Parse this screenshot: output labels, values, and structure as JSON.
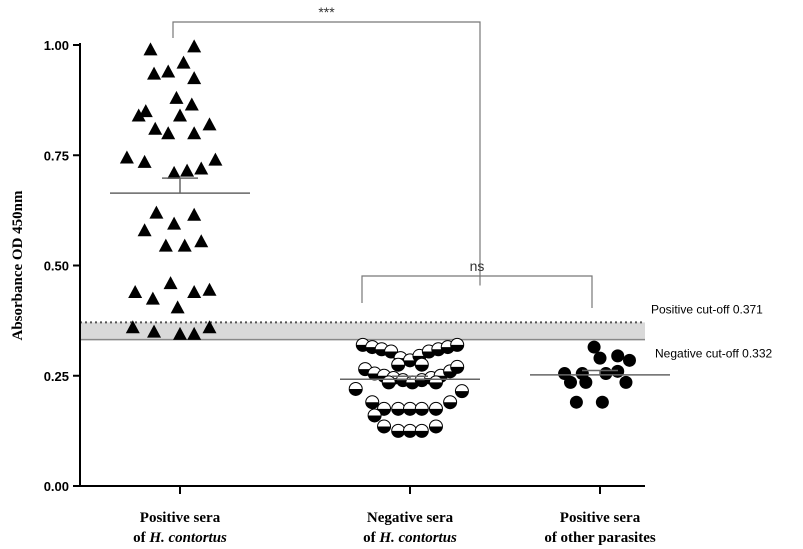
{
  "chart_data": {
    "type": "scatter",
    "ylabel": "Absorbance OD 450nm",
    "ylim": [
      0,
      1.0
    ],
    "yticks": [
      "0.00",
      "0.25",
      "0.50",
      "0.75",
      "1.00"
    ],
    "categories": [
      {
        "line1": "Positive sera",
        "prefix": "of ",
        "italic": "H. contortus",
        "suffix": ""
      },
      {
        "line1": "Negative sera",
        "prefix": "of ",
        "italic": "H. contortus",
        "suffix": ""
      },
      {
        "line1": "Positive sera",
        "prefix": "of other parasites",
        "italic": "",
        "suffix": ""
      }
    ],
    "cutoffs": {
      "positive": {
        "label": "Positive cut-off 0.371",
        "value": 0.371
      },
      "negative": {
        "label": "Negative cut-off 0.332",
        "value": 0.332
      }
    },
    "comparisons": [
      {
        "from": 0,
        "to": 1,
        "label": "***"
      },
      {
        "from": 1,
        "to": 2,
        "label": "ns"
      }
    ],
    "groups": [
      {
        "marker": "triangle",
        "mean": 0.664,
        "sem_upper": 0.698,
        "points": [
          {
            "x": -0.25,
            "y": 0.99
          },
          {
            "x": 0.12,
            "y": 0.997
          },
          {
            "x": -0.1,
            "y": 0.94
          },
          {
            "x": 0.03,
            "y": 0.96
          },
          {
            "x": -0.22,
            "y": 0.935
          },
          {
            "x": 0.12,
            "y": 0.925
          },
          {
            "x": -0.03,
            "y": 0.88
          },
          {
            "x": 0.1,
            "y": 0.865
          },
          {
            "x": -0.35,
            "y": 0.84
          },
          {
            "x": -0.29,
            "y": 0.85
          },
          {
            "x": 0.0,
            "y": 0.84
          },
          {
            "x": -0.21,
            "y": 0.81
          },
          {
            "x": -0.1,
            "y": 0.8
          },
          {
            "x": 0.12,
            "y": 0.8
          },
          {
            "x": 0.25,
            "y": 0.82
          },
          {
            "x": -0.45,
            "y": 0.745
          },
          {
            "x": -0.3,
            "y": 0.735
          },
          {
            "x": -0.05,
            "y": 0.71
          },
          {
            "x": 0.06,
            "y": 0.715
          },
          {
            "x": 0.18,
            "y": 0.72
          },
          {
            "x": 0.3,
            "y": 0.74
          },
          {
            "x": -0.2,
            "y": 0.62
          },
          {
            "x": 0.12,
            "y": 0.615
          },
          {
            "x": -0.3,
            "y": 0.58
          },
          {
            "x": -0.05,
            "y": 0.595
          },
          {
            "x": -0.12,
            "y": 0.545
          },
          {
            "x": 0.04,
            "y": 0.545
          },
          {
            "x": 0.18,
            "y": 0.555
          },
          {
            "x": -0.38,
            "y": 0.44
          },
          {
            "x": -0.23,
            "y": 0.425
          },
          {
            "x": -0.08,
            "y": 0.46
          },
          {
            "x": 0.12,
            "y": 0.44
          },
          {
            "x": 0.25,
            "y": 0.445
          },
          {
            "x": -0.02,
            "y": 0.405
          },
          {
            "x": -0.4,
            "y": 0.36
          },
          {
            "x": -0.22,
            "y": 0.35
          },
          {
            "x": 0.0,
            "y": 0.345
          },
          {
            "x": 0.12,
            "y": 0.345
          },
          {
            "x": 0.25,
            "y": 0.36
          }
        ]
      },
      {
        "marker": "half-circle",
        "mean": 0.242,
        "sem_upper": 0.249,
        "points": [
          {
            "x": -0.4,
            "y": 0.32
          },
          {
            "x": -0.32,
            "y": 0.315
          },
          {
            "x": -0.24,
            "y": 0.31
          },
          {
            "x": -0.16,
            "y": 0.305
          },
          {
            "x": -0.08,
            "y": 0.29
          },
          {
            "x": 0.0,
            "y": 0.285
          },
          {
            "x": 0.08,
            "y": 0.295
          },
          {
            "x": 0.16,
            "y": 0.305
          },
          {
            "x": 0.24,
            "y": 0.31
          },
          {
            "x": 0.32,
            "y": 0.315
          },
          {
            "x": 0.4,
            "y": 0.32
          },
          {
            "x": -0.1,
            "y": 0.275
          },
          {
            "x": 0.1,
            "y": 0.275
          },
          {
            "x": -0.38,
            "y": 0.265
          },
          {
            "x": -0.3,
            "y": 0.255
          },
          {
            "x": -0.22,
            "y": 0.25
          },
          {
            "x": -0.14,
            "y": 0.245
          },
          {
            "x": -0.06,
            "y": 0.24
          },
          {
            "x": 0.02,
            "y": 0.235
          },
          {
            "x": 0.1,
            "y": 0.24
          },
          {
            "x": 0.18,
            "y": 0.245
          },
          {
            "x": 0.26,
            "y": 0.25
          },
          {
            "x": 0.34,
            "y": 0.26
          },
          {
            "x": 0.4,
            "y": 0.27
          },
          {
            "x": -0.18,
            "y": 0.235
          },
          {
            "x": 0.22,
            "y": 0.235
          },
          {
            "x": -0.46,
            "y": 0.22
          },
          {
            "x": 0.44,
            "y": 0.215
          },
          {
            "x": -0.32,
            "y": 0.19
          },
          {
            "x": 0.34,
            "y": 0.19
          },
          {
            "x": -0.22,
            "y": 0.175
          },
          {
            "x": -0.1,
            "y": 0.175
          },
          {
            "x": 0.0,
            "y": 0.175
          },
          {
            "x": 0.1,
            "y": 0.175
          },
          {
            "x": 0.22,
            "y": 0.175
          },
          {
            "x": -0.3,
            "y": 0.16
          },
          {
            "x": -0.22,
            "y": 0.135
          },
          {
            "x": -0.1,
            "y": 0.125
          },
          {
            "x": 0.0,
            "y": 0.125
          },
          {
            "x": 0.1,
            "y": 0.125
          },
          {
            "x": 0.22,
            "y": 0.135
          }
        ]
      },
      {
        "marker": "circle",
        "mean": 0.252,
        "sem_upper": 0.262,
        "points": [
          {
            "x": -0.05,
            "y": 0.315
          },
          {
            "x": 0.0,
            "y": 0.29
          },
          {
            "x": 0.15,
            "y": 0.295
          },
          {
            "x": 0.25,
            "y": 0.285
          },
          {
            "x": -0.3,
            "y": 0.255
          },
          {
            "x": -0.15,
            "y": 0.255
          },
          {
            "x": 0.05,
            "y": 0.255
          },
          {
            "x": 0.15,
            "y": 0.26
          },
          {
            "x": -0.25,
            "y": 0.235
          },
          {
            "x": -0.12,
            "y": 0.235
          },
          {
            "x": 0.22,
            "y": 0.235
          },
          {
            "x": -0.2,
            "y": 0.19
          },
          {
            "x": 0.02,
            "y": 0.19
          }
        ]
      }
    ]
  }
}
